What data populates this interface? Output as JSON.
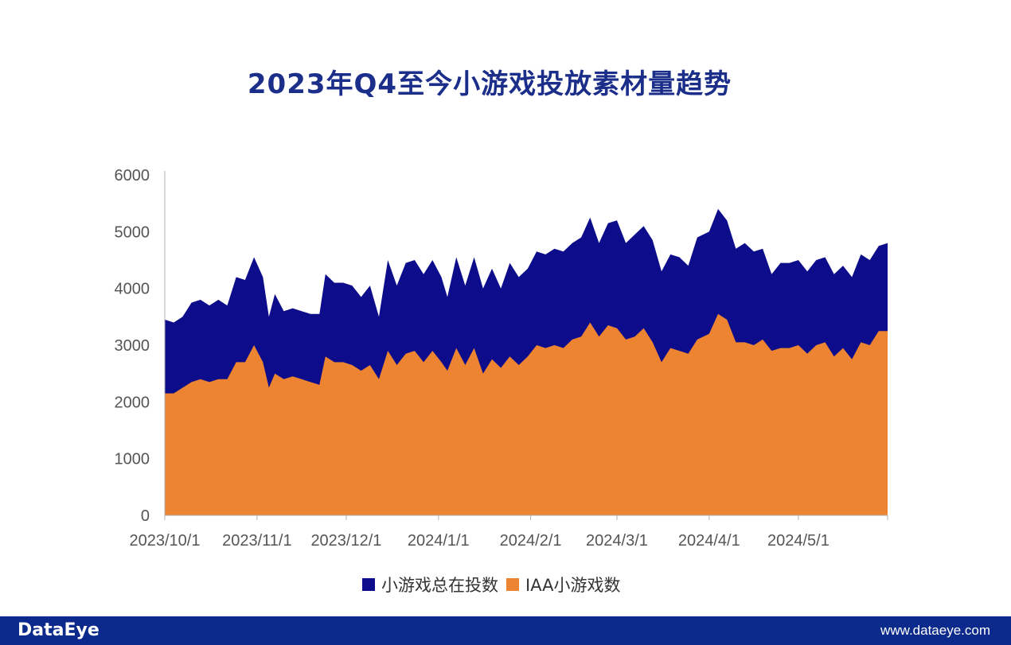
{
  "title": "2023年Q4至今小游戏投放素材量趋势",
  "footer": {
    "brand": "DataEye",
    "url": "www.dataeye.com"
  },
  "chart_data": {
    "type": "area",
    "title": "2023年Q4至今小游戏投放素材量趋势",
    "ylim": [
      0,
      6000
    ],
    "yticks": [
      "0",
      "1000",
      "2000",
      "3000",
      "4000",
      "5000",
      "6000"
    ],
    "xticks": [
      {
        "label": "2023/10/1",
        "date": "2023-10-01"
      },
      {
        "label": "2023/11/1",
        "date": "2023-11-01"
      },
      {
        "label": "2023/12/1",
        "date": "2023-12-01"
      },
      {
        "label": "2024/1/1",
        "date": "2024-01-01"
      },
      {
        "label": "2024/2/1",
        "date": "2024-02-01"
      },
      {
        "label": "2024/3/1",
        "date": "2024-03-01"
      },
      {
        "label": "2024/4/1",
        "date": "2024-04-01"
      },
      {
        "label": "2024/5/1",
        "date": "2024-05-01"
      }
    ],
    "x_start": "2023-10-01",
    "x_end": "2024-05-31",
    "legend_position": "bottom",
    "grid": false,
    "series": [
      {
        "name": "小游戏总在投数",
        "color": "#0d0d8c",
        "values": [
          [
            "2023-10-01",
            3450
          ],
          [
            "2023-10-04",
            3400
          ],
          [
            "2023-10-07",
            3500
          ],
          [
            "2023-10-10",
            3750
          ],
          [
            "2023-10-13",
            3800
          ],
          [
            "2023-10-16",
            3700
          ],
          [
            "2023-10-19",
            3800
          ],
          [
            "2023-10-22",
            3700
          ],
          [
            "2023-10-25",
            4200
          ],
          [
            "2023-10-28",
            4150
          ],
          [
            "2023-10-31",
            4550
          ],
          [
            "2023-11-03",
            4200
          ],
          [
            "2023-11-05",
            3500
          ],
          [
            "2023-11-07",
            3900
          ],
          [
            "2023-11-10",
            3600
          ],
          [
            "2023-11-13",
            3650
          ],
          [
            "2023-11-16",
            3600
          ],
          [
            "2023-11-19",
            3550
          ],
          [
            "2023-11-22",
            3550
          ],
          [
            "2023-11-24",
            4250
          ],
          [
            "2023-11-27",
            4100
          ],
          [
            "2023-11-30",
            4100
          ],
          [
            "2023-12-03",
            4050
          ],
          [
            "2023-12-06",
            3850
          ],
          [
            "2023-12-09",
            4050
          ],
          [
            "2023-12-12",
            3500
          ],
          [
            "2023-12-15",
            4500
          ],
          [
            "2023-12-18",
            4050
          ],
          [
            "2023-12-21",
            4450
          ],
          [
            "2023-12-24",
            4500
          ],
          [
            "2023-12-27",
            4250
          ],
          [
            "2023-12-30",
            4500
          ],
          [
            "2024-01-02",
            4200
          ],
          [
            "2024-01-04",
            3850
          ],
          [
            "2024-01-07",
            4550
          ],
          [
            "2024-01-10",
            4050
          ],
          [
            "2024-01-13",
            4550
          ],
          [
            "2024-01-16",
            4000
          ],
          [
            "2024-01-19",
            4350
          ],
          [
            "2024-01-22",
            4000
          ],
          [
            "2024-01-25",
            4450
          ],
          [
            "2024-01-28",
            4200
          ],
          [
            "2024-01-31",
            4350
          ],
          [
            "2024-02-03",
            4650
          ],
          [
            "2024-02-06",
            4600
          ],
          [
            "2024-02-09",
            4700
          ],
          [
            "2024-02-12",
            4650
          ],
          [
            "2024-02-15",
            4800
          ],
          [
            "2024-02-18",
            4900
          ],
          [
            "2024-02-21",
            5250
          ],
          [
            "2024-02-24",
            4800
          ],
          [
            "2024-02-27",
            5150
          ],
          [
            "2024-03-01",
            5200
          ],
          [
            "2024-03-04",
            4800
          ],
          [
            "2024-03-07",
            4950
          ],
          [
            "2024-03-10",
            5100
          ],
          [
            "2024-03-13",
            4850
          ],
          [
            "2024-03-16",
            4300
          ],
          [
            "2024-03-19",
            4600
          ],
          [
            "2024-03-22",
            4550
          ],
          [
            "2024-03-25",
            4400
          ],
          [
            "2024-03-28",
            4900
          ],
          [
            "2024-04-01",
            5000
          ],
          [
            "2024-04-04",
            5400
          ],
          [
            "2024-04-07",
            5200
          ],
          [
            "2024-04-10",
            4700
          ],
          [
            "2024-04-13",
            4800
          ],
          [
            "2024-04-16",
            4650
          ],
          [
            "2024-04-19",
            4700
          ],
          [
            "2024-04-22",
            4250
          ],
          [
            "2024-04-25",
            4450
          ],
          [
            "2024-04-28",
            4450
          ],
          [
            "2024-05-01",
            4500
          ],
          [
            "2024-05-04",
            4300
          ],
          [
            "2024-05-07",
            4500
          ],
          [
            "2024-05-10",
            4550
          ],
          [
            "2024-05-13",
            4250
          ],
          [
            "2024-05-16",
            4400
          ],
          [
            "2024-05-19",
            4200
          ],
          [
            "2024-05-22",
            4600
          ],
          [
            "2024-05-25",
            4500
          ],
          [
            "2024-05-28",
            4750
          ],
          [
            "2024-05-31",
            4800
          ]
        ]
      },
      {
        "name": "IAA小游戏数",
        "color": "#ed8431",
        "values": [
          [
            "2023-10-01",
            2150
          ],
          [
            "2023-10-04",
            2150
          ],
          [
            "2023-10-07",
            2250
          ],
          [
            "2023-10-10",
            2350
          ],
          [
            "2023-10-13",
            2400
          ],
          [
            "2023-10-16",
            2350
          ],
          [
            "2023-10-19",
            2400
          ],
          [
            "2023-10-22",
            2400
          ],
          [
            "2023-10-25",
            2700
          ],
          [
            "2023-10-28",
            2700
          ],
          [
            "2023-10-31",
            3000
          ],
          [
            "2023-11-03",
            2700
          ],
          [
            "2023-11-05",
            2250
          ],
          [
            "2023-11-07",
            2500
          ],
          [
            "2023-11-10",
            2400
          ],
          [
            "2023-11-13",
            2450
          ],
          [
            "2023-11-16",
            2400
          ],
          [
            "2023-11-19",
            2350
          ],
          [
            "2023-11-22",
            2300
          ],
          [
            "2023-11-24",
            2800
          ],
          [
            "2023-11-27",
            2700
          ],
          [
            "2023-11-30",
            2700
          ],
          [
            "2023-12-03",
            2650
          ],
          [
            "2023-12-06",
            2550
          ],
          [
            "2023-12-09",
            2650
          ],
          [
            "2023-12-12",
            2400
          ],
          [
            "2023-12-15",
            2900
          ],
          [
            "2023-12-18",
            2650
          ],
          [
            "2023-12-21",
            2850
          ],
          [
            "2023-12-24",
            2900
          ],
          [
            "2023-12-27",
            2700
          ],
          [
            "2023-12-30",
            2900
          ],
          [
            "2024-01-02",
            2700
          ],
          [
            "2024-01-04",
            2550
          ],
          [
            "2024-01-07",
            2950
          ],
          [
            "2024-01-10",
            2650
          ],
          [
            "2024-01-13",
            2950
          ],
          [
            "2024-01-16",
            2500
          ],
          [
            "2024-01-19",
            2750
          ],
          [
            "2024-01-22",
            2600
          ],
          [
            "2024-01-25",
            2800
          ],
          [
            "2024-01-28",
            2650
          ],
          [
            "2024-01-31",
            2800
          ],
          [
            "2024-02-03",
            3000
          ],
          [
            "2024-02-06",
            2950
          ],
          [
            "2024-02-09",
            3000
          ],
          [
            "2024-02-12",
            2950
          ],
          [
            "2024-02-15",
            3100
          ],
          [
            "2024-02-18",
            3150
          ],
          [
            "2024-02-21",
            3400
          ],
          [
            "2024-02-24",
            3150
          ],
          [
            "2024-02-27",
            3350
          ],
          [
            "2024-03-01",
            3300
          ],
          [
            "2024-03-04",
            3100
          ],
          [
            "2024-03-07",
            3150
          ],
          [
            "2024-03-10",
            3300
          ],
          [
            "2024-03-13",
            3050
          ],
          [
            "2024-03-16",
            2700
          ],
          [
            "2024-03-19",
            2950
          ],
          [
            "2024-03-22",
            2900
          ],
          [
            "2024-03-25",
            2850
          ],
          [
            "2024-03-28",
            3100
          ],
          [
            "2024-04-01",
            3200
          ],
          [
            "2024-04-04",
            3550
          ],
          [
            "2024-04-07",
            3450
          ],
          [
            "2024-04-10",
            3050
          ],
          [
            "2024-04-13",
            3050
          ],
          [
            "2024-04-16",
            3000
          ],
          [
            "2024-04-19",
            3100
          ],
          [
            "2024-04-22",
            2900
          ],
          [
            "2024-04-25",
            2950
          ],
          [
            "2024-04-28",
            2950
          ],
          [
            "2024-05-01",
            3000
          ],
          [
            "2024-05-04",
            2850
          ],
          [
            "2024-05-07",
            3000
          ],
          [
            "2024-05-10",
            3050
          ],
          [
            "2024-05-13",
            2800
          ],
          [
            "2024-05-16",
            2950
          ],
          [
            "2024-05-19",
            2750
          ],
          [
            "2024-05-22",
            3050
          ],
          [
            "2024-05-25",
            3000
          ],
          [
            "2024-05-28",
            3250
          ],
          [
            "2024-05-31",
            3250
          ]
        ]
      }
    ]
  }
}
